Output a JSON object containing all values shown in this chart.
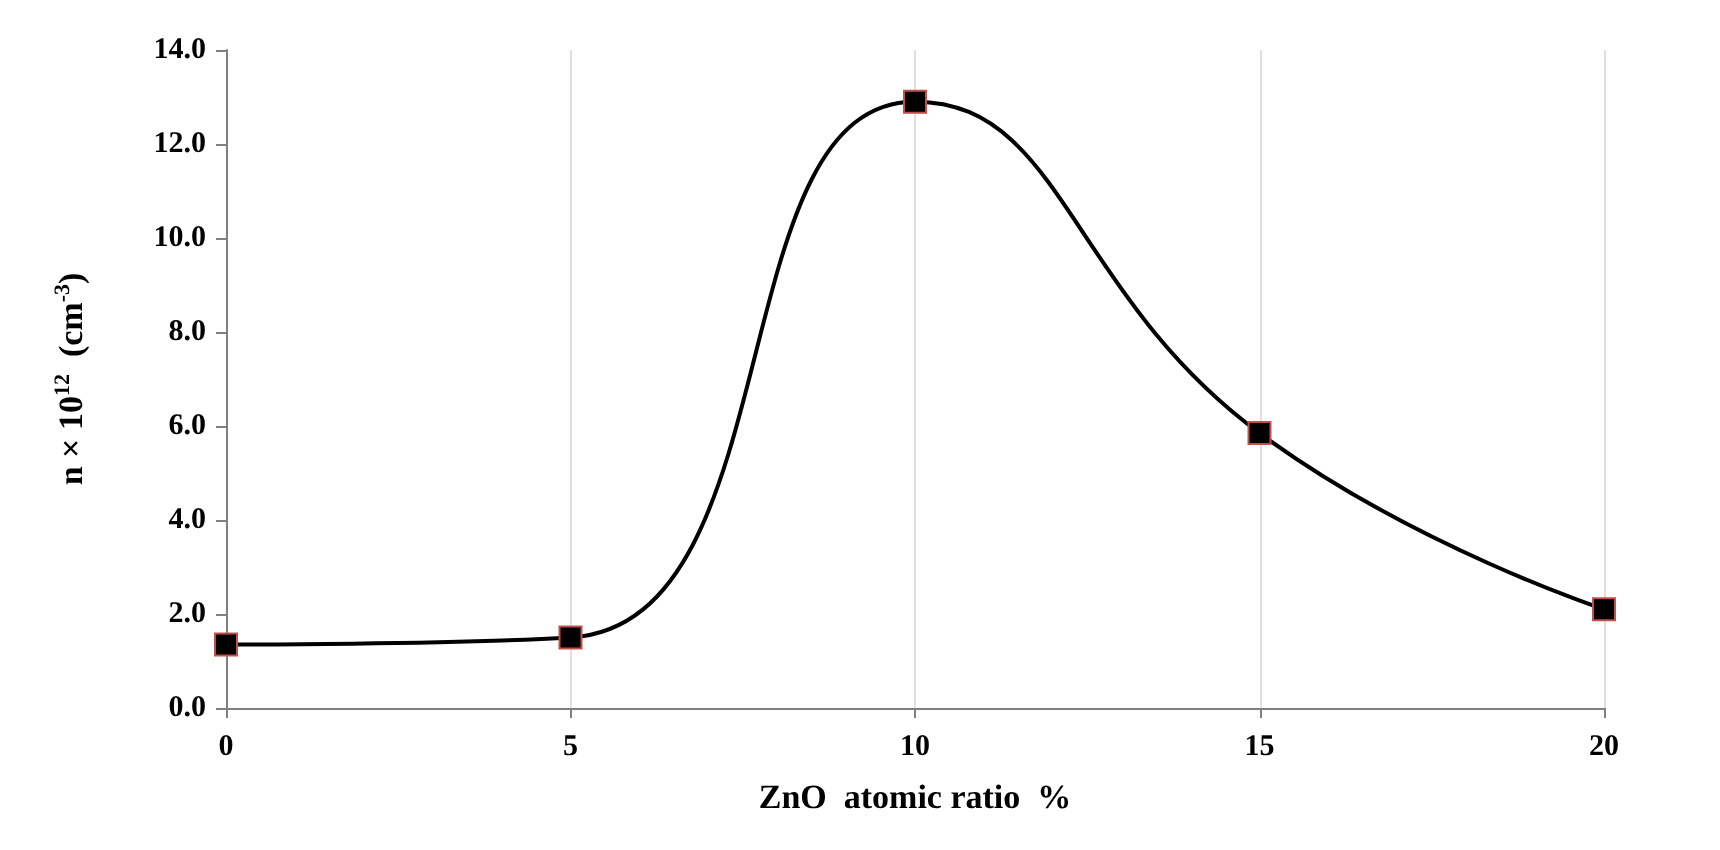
{
  "chart_data": {
    "type": "line",
    "xlabel": "ZnO  atomic ratio  %",
    "ylabel": "n × 10$^{12}$  (cm$^{-3}$)",
    "x": [
      0,
      5,
      10,
      15,
      20
    ],
    "series": [
      {
        "color": "#000000",
        "values": [
          1.35,
          1.5,
          12.9,
          5.85,
          2.1
        ]
      }
    ],
    "xlim": [
      0,
      20
    ],
    "xticks": [
      0,
      5,
      10,
      15,
      20
    ],
    "ylim": [
      0,
      14
    ],
    "yticks": [
      {
        "value": 0,
        "label": "0.0"
      },
      {
        "value": 2,
        "label": "2.0"
      },
      {
        "value": 4,
        "label": "4.0"
      },
      {
        "value": 6,
        "label": "6.0"
      },
      {
        "value": 8,
        "label": "8.0"
      },
      {
        "value": 10,
        "label": "10.0"
      },
      {
        "value": 12,
        "label": "12.0"
      },
      {
        "value": 14,
        "label": "14.0"
      }
    ],
    "grid": "x",
    "marker": "square",
    "line_style": "solid"
  }
}
